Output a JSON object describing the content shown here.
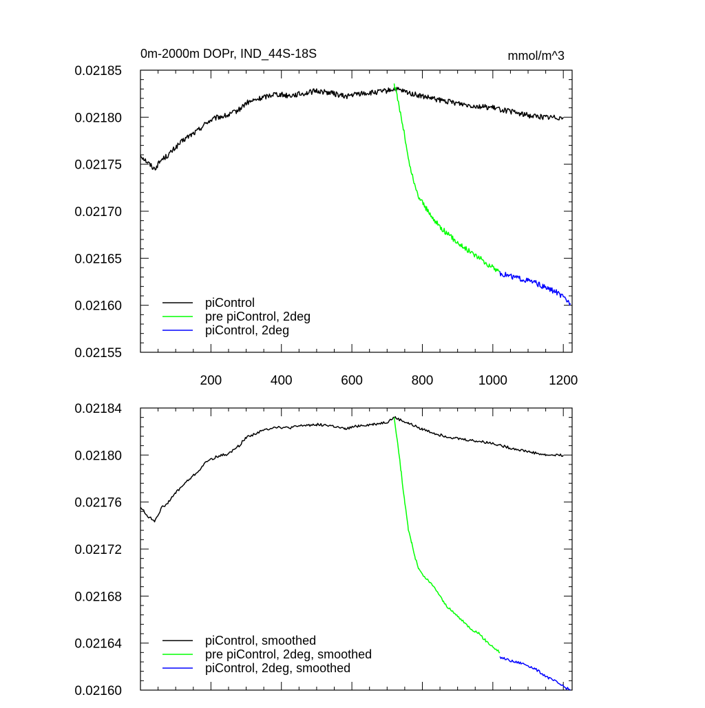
{
  "chart_data": [
    {
      "type": "line",
      "title": "0m-2000m DOPr, IND_44S-18S",
      "units": "mmol/m^3",
      "xlim": [
        0,
        1225
      ],
      "ylim": [
        0.02155,
        0.02185
      ],
      "xticks": [
        200,
        400,
        600,
        800,
        1000,
        1200
      ],
      "yticks": [
        "0.02155",
        "0.02160",
        "0.02165",
        "0.02170",
        "0.02175",
        "0.02180",
        "0.02185"
      ],
      "legend": [
        "piControl",
        "pre piControl, 2deg",
        "piControl, 2deg"
      ],
      "legend_position": "bottom-left",
      "series": [
        {
          "name": "piControl",
          "color": "#000000",
          "x": [
            0,
            20,
            40,
            60,
            80,
            100,
            130,
            160,
            190,
            220,
            250,
            280,
            300,
            340,
            380,
            420,
            460,
            500,
            540,
            580,
            620,
            660,
            700,
            720,
            760,
            800,
            850,
            900,
            950,
            1000,
            1050,
            1100,
            1150,
            1200
          ],
          "y": [
            0.02176,
            0.021752,
            0.021745,
            0.021755,
            0.02176,
            0.021768,
            0.021778,
            0.021785,
            0.021795,
            0.0218,
            0.021802,
            0.021808,
            0.021815,
            0.02182,
            0.021825,
            0.021823,
            0.021825,
            0.021828,
            0.021826,
            0.021822,
            0.021825,
            0.021826,
            0.021828,
            0.02183,
            0.021826,
            0.021822,
            0.021818,
            0.021815,
            0.021812,
            0.02181,
            0.021806,
            0.021802,
            0.0218,
            0.0218
          ]
        },
        {
          "name": "pre piControl, 2deg",
          "color": "#00ff00",
          "x": [
            720,
            730,
            740,
            750,
            760,
            770,
            780,
            790,
            800,
            820,
            840,
            860,
            880,
            900,
            920,
            940,
            960,
            980,
            1000,
            1020
          ],
          "y": [
            0.021835,
            0.02182,
            0.0218,
            0.02178,
            0.021755,
            0.02174,
            0.021725,
            0.021715,
            0.02171,
            0.021697,
            0.021688,
            0.02168,
            0.021673,
            0.021667,
            0.021661,
            0.021656,
            0.021651,
            0.021645,
            0.02164,
            0.021636
          ]
        },
        {
          "name": "piControl, 2deg",
          "color": "#0000ff",
          "x": [
            1020,
            1040,
            1060,
            1080,
            1100,
            1120,
            1140,
            1160,
            1180,
            1200,
            1220
          ],
          "y": [
            0.021634,
            0.021632,
            0.02163,
            0.021628,
            0.021626,
            0.021624,
            0.02162,
            0.021617,
            0.021614,
            0.021608,
            0.021602
          ]
        }
      ]
    },
    {
      "type": "line",
      "title": "",
      "units": "",
      "xlim": [
        0,
        1225
      ],
      "ylim": [
        0.0216,
        0.02184
      ],
      "xticks": [
        200,
        400,
        600,
        800,
        1000,
        1200
      ],
      "yticks": [
        "0.02160",
        "0.02164",
        "0.02168",
        "0.02172",
        "0.02176",
        "0.02180",
        "0.02184"
      ],
      "legend": [
        "piControl, smoothed",
        "pre piControl, 2deg, smoothed",
        "piControl, 2deg, smoothed"
      ],
      "legend_position": "bottom-left",
      "series": [
        {
          "name": "piControl, smoothed",
          "color": "#000000",
          "x": [
            0,
            20,
            40,
            60,
            80,
            100,
            130,
            160,
            190,
            220,
            250,
            280,
            300,
            340,
            380,
            420,
            460,
            500,
            540,
            580,
            620,
            660,
            700,
            720,
            760,
            800,
            850,
            900,
            950,
            1000,
            1050,
            1100,
            1150,
            1200
          ],
          "y": [
            0.021756,
            0.021748,
            0.021744,
            0.021755,
            0.02176,
            0.021768,
            0.021777,
            0.021785,
            0.021795,
            0.021799,
            0.021801,
            0.021808,
            0.021815,
            0.02182,
            0.021824,
            0.021823,
            0.021825,
            0.021826,
            0.021825,
            0.021822,
            0.021825,
            0.021826,
            0.021828,
            0.021832,
            0.021827,
            0.021822,
            0.021817,
            0.021814,
            0.021812,
            0.02181,
            0.021806,
            0.021803,
            0.0218,
            0.0218
          ]
        },
        {
          "name": "pre piControl, 2deg, smoothed",
          "color": "#00ff00",
          "x": [
            720,
            730,
            740,
            750,
            760,
            770,
            780,
            790,
            800,
            820,
            840,
            860,
            880,
            900,
            920,
            940,
            960,
            980,
            1000,
            1020
          ],
          "y": [
            0.021832,
            0.02181,
            0.021785,
            0.02176,
            0.021737,
            0.021725,
            0.021712,
            0.021703,
            0.021698,
            0.021692,
            0.021685,
            0.021675,
            0.021668,
            0.021663,
            0.021657,
            0.021652,
            0.021648,
            0.021642,
            0.021637,
            0.021632
          ]
        },
        {
          "name": "piControl, 2deg, smoothed",
          "color": "#0000ff",
          "x": [
            1020,
            1040,
            1060,
            1080,
            1100,
            1120,
            1140,
            1160,
            1180,
            1200,
            1220
          ],
          "y": [
            0.021628,
            0.021626,
            0.021624,
            0.021623,
            0.021621,
            0.021618,
            0.021614,
            0.02161,
            0.021607,
            0.021603,
            0.0216
          ]
        }
      ]
    }
  ]
}
